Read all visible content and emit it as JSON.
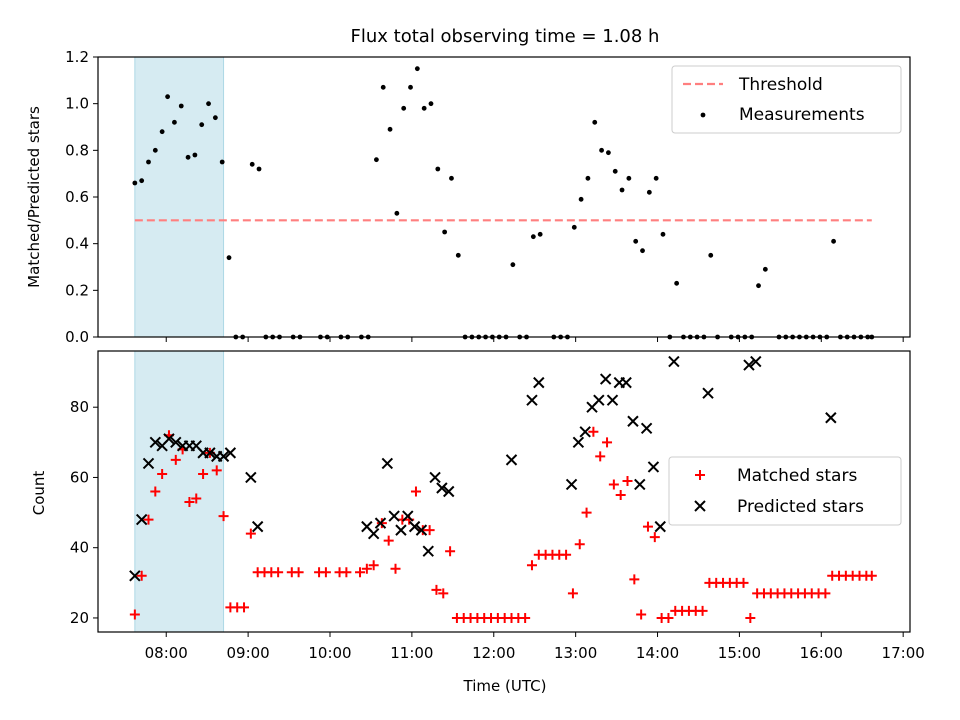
{
  "chart_data": [
    {
      "type": "scatter",
      "title": "Flux total observing time = 1.08 h",
      "ylabel": "Matched/Predicted stars",
      "xlabel": "",
      "xlim": [
        "07:10",
        "17:05"
      ],
      "ylim": [
        0,
        1.2
      ],
      "yticks": [
        "0.0",
        "0.2",
        "0.4",
        "0.6",
        "0.8",
        "1.0",
        "1.2"
      ],
      "xticks": [
        "08:00",
        "09:00",
        "10:00",
        "11:00",
        "12:00",
        "13:00",
        "14:00",
        "15:00",
        "16:00",
        "17:00"
      ],
      "highlight_span": [
        "07:37",
        "08:42"
      ],
      "legend_position": "upper-right",
      "threshold": {
        "name": "Threshold",
        "value": 0.5,
        "x_range": [
          "07:37",
          "16:37"
        ],
        "color": "#ff7f7f"
      },
      "series": [
        {
          "name": "Measurements",
          "marker": "dot",
          "color": "#000000",
          "points": [
            [
              "07:37",
              0.66
            ],
            [
              "07:42",
              0.67
            ],
            [
              "07:47",
              0.75
            ],
            [
              "07:52",
              0.8
            ],
            [
              "07:57",
              0.88
            ],
            [
              "08:01",
              1.03
            ],
            [
              "08:06",
              0.92
            ],
            [
              "08:11",
              0.99
            ],
            [
              "08:16",
              0.77
            ],
            [
              "08:21",
              0.78
            ],
            [
              "08:26",
              0.91
            ],
            [
              "08:31",
              1.0
            ],
            [
              "08:36",
              0.94
            ],
            [
              "08:41",
              0.75
            ],
            [
              "08:46",
              0.34
            ],
            [
              "08:51",
              0.0
            ],
            [
              "08:56",
              0.0
            ],
            [
              "09:03",
              0.74
            ],
            [
              "09:08",
              0.72
            ],
            [
              "09:13",
              0.0
            ],
            [
              "09:18",
              0.0
            ],
            [
              "09:23",
              0.0
            ],
            [
              "09:33",
              0.0
            ],
            [
              "09:38",
              0.0
            ],
            [
              "09:53",
              0.0
            ],
            [
              "09:58",
              0.0
            ],
            [
              "10:08",
              0.0
            ],
            [
              "10:13",
              0.0
            ],
            [
              "10:23",
              0.0
            ],
            [
              "10:28",
              0.0
            ],
            [
              "10:34",
              0.76
            ],
            [
              "10:39",
              1.07
            ],
            [
              "10:44",
              0.89
            ],
            [
              "10:49",
              0.53
            ],
            [
              "10:54",
              0.98
            ],
            [
              "10:59",
              1.07
            ],
            [
              "11:04",
              1.15
            ],
            [
              "11:09",
              0.98
            ],
            [
              "11:14",
              1.0
            ],
            [
              "11:19",
              0.72
            ],
            [
              "11:24",
              0.45
            ],
            [
              "11:29",
              0.68
            ],
            [
              "11:34",
              0.35
            ],
            [
              "11:39",
              0.0
            ],
            [
              "11:44",
              0.0
            ],
            [
              "11:49",
              0.0
            ],
            [
              "11:54",
              0.0
            ],
            [
              "11:59",
              0.0
            ],
            [
              "12:04",
              0.0
            ],
            [
              "12:09",
              0.0
            ],
            [
              "12:14",
              0.31
            ],
            [
              "12:19",
              0.0
            ],
            [
              "12:24",
              0.0
            ],
            [
              "12:29",
              0.43
            ],
            [
              "12:34",
              0.44
            ],
            [
              "12:44",
              0.0
            ],
            [
              "12:49",
              0.0
            ],
            [
              "12:54",
              0.0
            ],
            [
              "12:59",
              0.47
            ],
            [
              "13:04",
              0.59
            ],
            [
              "13:09",
              0.68
            ],
            [
              "13:14",
              0.92
            ],
            [
              "13:19",
              0.8
            ],
            [
              "13:24",
              0.79
            ],
            [
              "13:29",
              0.71
            ],
            [
              "13:34",
              0.63
            ],
            [
              "13:39",
              0.68
            ],
            [
              "13:44",
              0.41
            ],
            [
              "13:49",
              0.37
            ],
            [
              "13:54",
              0.62
            ],
            [
              "13:59",
              0.68
            ],
            [
              "14:04",
              0.44
            ],
            [
              "14:09",
              0.0
            ],
            [
              "14:14",
              0.23
            ],
            [
              "14:19",
              0.0
            ],
            [
              "14:24",
              0.0
            ],
            [
              "14:29",
              0.0
            ],
            [
              "14:34",
              0.0
            ],
            [
              "14:39",
              0.35
            ],
            [
              "14:44",
              0.0
            ],
            [
              "14:54",
              0.0
            ],
            [
              "14:59",
              0.0
            ],
            [
              "15:04",
              0.0
            ],
            [
              "15:09",
              0.0
            ],
            [
              "15:14",
              0.22
            ],
            [
              "15:19",
              0.29
            ],
            [
              "15:29",
              0.0
            ],
            [
              "15:34",
              0.0
            ],
            [
              "15:39",
              0.0
            ],
            [
              "15:44",
              0.0
            ],
            [
              "15:49",
              0.0
            ],
            [
              "15:54",
              0.0
            ],
            [
              "15:59",
              0.0
            ],
            [
              "16:04",
              0.0
            ],
            [
              "16:09",
              0.41
            ],
            [
              "16:14",
              0.0
            ],
            [
              "16:19",
              0.0
            ],
            [
              "16:24",
              0.0
            ],
            [
              "16:29",
              0.0
            ],
            [
              "16:34",
              0.0
            ],
            [
              "16:37",
              0.0
            ]
          ]
        }
      ]
    },
    {
      "type": "scatter",
      "title": "",
      "ylabel": "Count",
      "xlabel": "Time (UTC)",
      "xlim": [
        "07:10",
        "17:05"
      ],
      "ylim": [
        16,
        96
      ],
      "yticks": [
        "20",
        "40",
        "60",
        "80"
      ],
      "xticks": [
        "08:00",
        "09:00",
        "10:00",
        "11:00",
        "12:00",
        "13:00",
        "14:00",
        "15:00",
        "16:00",
        "17:00"
      ],
      "highlight_span": [
        "07:37",
        "08:42"
      ],
      "legend_position": "center-right",
      "series": [
        {
          "name": "Matched stars",
          "marker": "plus",
          "color": "#ff0000",
          "points": [
            [
              "07:37",
              21
            ],
            [
              "07:42",
              32
            ],
            [
              "07:47",
              48
            ],
            [
              "07:52",
              56
            ],
            [
              "07:57",
              61
            ],
            [
              "08:02",
              72
            ],
            [
              "08:07",
              65
            ],
            [
              "08:12",
              68
            ],
            [
              "08:17",
              53
            ],
            [
              "08:22",
              54
            ],
            [
              "08:27",
              61
            ],
            [
              "08:32",
              67
            ],
            [
              "08:37",
              62
            ],
            [
              "08:42",
              49
            ],
            [
              "08:47",
              23
            ],
            [
              "08:52",
              23
            ],
            [
              "08:57",
              23
            ],
            [
              "09:02",
              44
            ],
            [
              "09:07",
              33
            ],
            [
              "09:12",
              33
            ],
            [
              "09:17",
              33
            ],
            [
              "09:22",
              33
            ],
            [
              "09:32",
              33
            ],
            [
              "09:37",
              33
            ],
            [
              "09:52",
              33
            ],
            [
              "09:57",
              33
            ],
            [
              "10:07",
              33
            ],
            [
              "10:12",
              33
            ],
            [
              "10:22",
              33
            ],
            [
              "10:27",
              34
            ],
            [
              "10:32",
              35
            ],
            [
              "10:38",
              47
            ],
            [
              "10:43",
              42
            ],
            [
              "10:48",
              34
            ],
            [
              "10:53",
              48
            ],
            [
              "10:58",
              48
            ],
            [
              "11:03",
              56
            ],
            [
              "11:08",
              45
            ],
            [
              "11:13",
              45
            ],
            [
              "11:18",
              28
            ],
            [
              "11:23",
              27
            ],
            [
              "11:28",
              39
            ],
            [
              "11:33",
              20
            ],
            [
              "11:38",
              20
            ],
            [
              "11:43",
              20
            ],
            [
              "11:48",
              20
            ],
            [
              "11:53",
              20
            ],
            [
              "11:58",
              20
            ],
            [
              "12:03",
              20
            ],
            [
              "12:08",
              20
            ],
            [
              "12:13",
              20
            ],
            [
              "12:18",
              20
            ],
            [
              "12:23",
              20
            ],
            [
              "12:28",
              35
            ],
            [
              "12:33",
              38
            ],
            [
              "12:38",
              38
            ],
            [
              "12:43",
              38
            ],
            [
              "12:48",
              38
            ],
            [
              "12:53",
              38
            ],
            [
              "12:58",
              27
            ],
            [
              "13:03",
              41
            ],
            [
              "13:08",
              50
            ],
            [
              "13:13",
              73
            ],
            [
              "13:18",
              66
            ],
            [
              "13:23",
              70
            ],
            [
              "13:28",
              58
            ],
            [
              "13:33",
              55
            ],
            [
              "13:38",
              59
            ],
            [
              "13:43",
              31
            ],
            [
              "13:48",
              21
            ],
            [
              "13:53",
              46
            ],
            [
              "13:58",
              43
            ],
            [
              "14:03",
              20
            ],
            [
              "14:08",
              20
            ],
            [
              "14:13",
              22
            ],
            [
              "14:18",
              22
            ],
            [
              "14:23",
              22
            ],
            [
              "14:28",
              22
            ],
            [
              "14:33",
              22
            ],
            [
              "14:38",
              30
            ],
            [
              "14:43",
              30
            ],
            [
              "14:48",
              30
            ],
            [
              "14:53",
              30
            ],
            [
              "14:58",
              30
            ],
            [
              "15:03",
              30
            ],
            [
              "15:08",
              20
            ],
            [
              "15:13",
              27
            ],
            [
              "15:18",
              27
            ],
            [
              "15:23",
              27
            ],
            [
              "15:28",
              27
            ],
            [
              "15:33",
              27
            ],
            [
              "15:38",
              27
            ],
            [
              "15:43",
              27
            ],
            [
              "15:48",
              27
            ],
            [
              "15:53",
              27
            ],
            [
              "15:58",
              27
            ],
            [
              "16:03",
              27
            ],
            [
              "16:08",
              32
            ],
            [
              "16:13",
              32
            ],
            [
              "16:18",
              32
            ],
            [
              "16:23",
              32
            ],
            [
              "16:28",
              32
            ],
            [
              "16:33",
              32
            ],
            [
              "16:37",
              32
            ]
          ]
        },
        {
          "name": "Predicted stars",
          "marker": "x",
          "color": "#000000",
          "points": [
            [
              "07:37",
              32
            ],
            [
              "07:42",
              48
            ],
            [
              "07:47",
              64
            ],
            [
              "07:52",
              70
            ],
            [
              "07:57",
              69
            ],
            [
              "08:02",
              71
            ],
            [
              "08:07",
              70
            ],
            [
              "08:12",
              69
            ],
            [
              "08:17",
              69
            ],
            [
              "08:22",
              69
            ],
            [
              "08:27",
              67
            ],
            [
              "08:32",
              67
            ],
            [
              "08:37",
              66
            ],
            [
              "08:42",
              66
            ],
            [
              "08:47",
              67
            ],
            [
              "09:02",
              60
            ],
            [
              "09:07",
              46
            ],
            [
              "10:27",
              46
            ],
            [
              "10:32",
              44
            ],
            [
              "10:37",
              47
            ],
            [
              "10:42",
              64
            ],
            [
              "10:47",
              49
            ],
            [
              "10:52",
              45
            ],
            [
              "10:57",
              49
            ],
            [
              "11:02",
              46
            ],
            [
              "11:07",
              45
            ],
            [
              "11:12",
              39
            ],
            [
              "11:17",
              60
            ],
            [
              "11:22",
              57
            ],
            [
              "11:27",
              56
            ],
            [
              "12:13",
              65
            ],
            [
              "12:28",
              82
            ],
            [
              "12:33",
              87
            ],
            [
              "12:57",
              58
            ],
            [
              "13:02",
              70
            ],
            [
              "13:07",
              73
            ],
            [
              "13:12",
              80
            ],
            [
              "13:17",
              82
            ],
            [
              "13:22",
              88
            ],
            [
              "13:27",
              82
            ],
            [
              "13:32",
              87
            ],
            [
              "13:37",
              87
            ],
            [
              "13:42",
              76
            ],
            [
              "13:47",
              58
            ],
            [
              "13:52",
              74
            ],
            [
              "13:57",
              63
            ],
            [
              "14:02",
              46
            ],
            [
              "14:12",
              93
            ],
            [
              "14:37",
              84
            ],
            [
              "15:07",
              92
            ],
            [
              "15:12",
              93
            ],
            [
              "16:07",
              77
            ]
          ]
        }
      ]
    }
  ]
}
